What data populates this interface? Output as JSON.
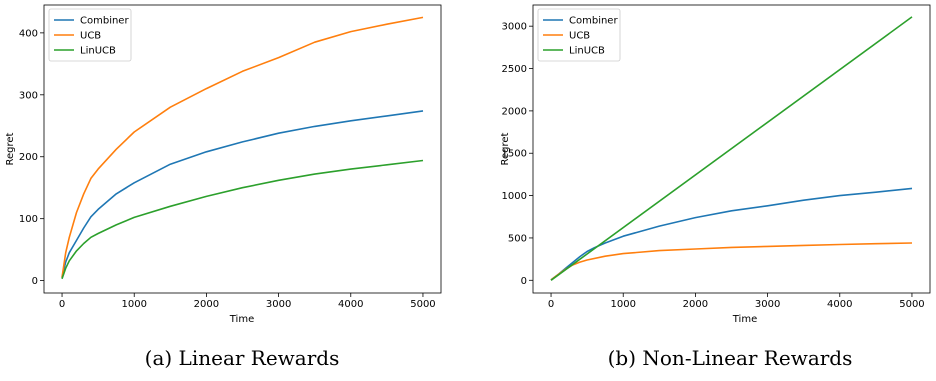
{
  "colors": {
    "Combiner": "#1f77b4",
    "UCB": "#ff7f0e",
    "LinUCB": "#2ca02c"
  },
  "chart_data": [
    {
      "type": "line",
      "caption": "(a) Linear Rewards",
      "xlabel": "Time",
      "ylabel": "Regret",
      "xlim": [
        -250,
        5250
      ],
      "ylim": [
        -20,
        445
      ],
      "xticks": [
        0,
        1000,
        2000,
        3000,
        4000,
        5000
      ],
      "yticks": [
        0,
        100,
        200,
        300,
        400
      ],
      "legend": "top-left",
      "series": [
        {
          "name": "Combiner",
          "x": [
            0,
            50,
            100,
            200,
            300,
            400,
            500,
            750,
            1000,
            1500,
            2000,
            2500,
            3000,
            3500,
            4000,
            4500,
            5000
          ],
          "y": [
            5,
            30,
            45,
            65,
            85,
            103,
            115,
            140,
            158,
            188,
            208,
            224,
            238,
            249,
            258,
            266,
            274
          ]
        },
        {
          "name": "UCB",
          "x": [
            0,
            50,
            100,
            200,
            300,
            400,
            500,
            750,
            1000,
            1500,
            2000,
            2500,
            3000,
            3500,
            4000,
            4500,
            5000
          ],
          "y": [
            5,
            45,
            70,
            110,
            140,
            165,
            180,
            212,
            240,
            280,
            310,
            338,
            360,
            385,
            402,
            414,
            425
          ]
        },
        {
          "name": "LinUCB",
          "x": [
            0,
            50,
            100,
            200,
            300,
            400,
            500,
            750,
            1000,
            1500,
            2000,
            2500,
            3000,
            3500,
            4000,
            4500,
            5000
          ],
          "y": [
            3,
            20,
            32,
            48,
            60,
            70,
            76,
            90,
            102,
            120,
            136,
            150,
            162,
            172,
            180,
            187,
            194
          ]
        }
      ]
    },
    {
      "type": "line",
      "caption": "(b) Non-Linear Rewards",
      "xlabel": "Time",
      "ylabel": "Regret",
      "xlim": [
        -250,
        5250
      ],
      "ylim": [
        -150,
        3250
      ],
      "xticks": [
        0,
        1000,
        2000,
        3000,
        4000,
        5000
      ],
      "yticks": [
        0,
        500,
        1000,
        1500,
        2000,
        2500,
        3000
      ],
      "legend": "top-left",
      "series": [
        {
          "name": "Combiner",
          "x": [
            0,
            100,
            200,
            300,
            400,
            500,
            600,
            750,
            1000,
            1500,
            2000,
            2500,
            3000,
            3500,
            4000,
            4500,
            5000
          ],
          "y": [
            5,
            70,
            140,
            210,
            280,
            340,
            385,
            440,
            520,
            640,
            740,
            820,
            880,
            945,
            1000,
            1040,
            1085
          ]
        },
        {
          "name": "UCB",
          "x": [
            0,
            100,
            200,
            300,
            400,
            500,
            750,
            1000,
            1500,
            2000,
            2500,
            3000,
            3500,
            4000,
            4500,
            5000
          ],
          "y": [
            5,
            70,
            130,
            180,
            215,
            240,
            285,
            315,
            350,
            370,
            388,
            400,
            412,
            422,
            432,
            440
          ]
        },
        {
          "name": "LinUCB",
          "x": [
            0,
            5000
          ],
          "y": [
            0,
            3110
          ]
        }
      ]
    }
  ]
}
